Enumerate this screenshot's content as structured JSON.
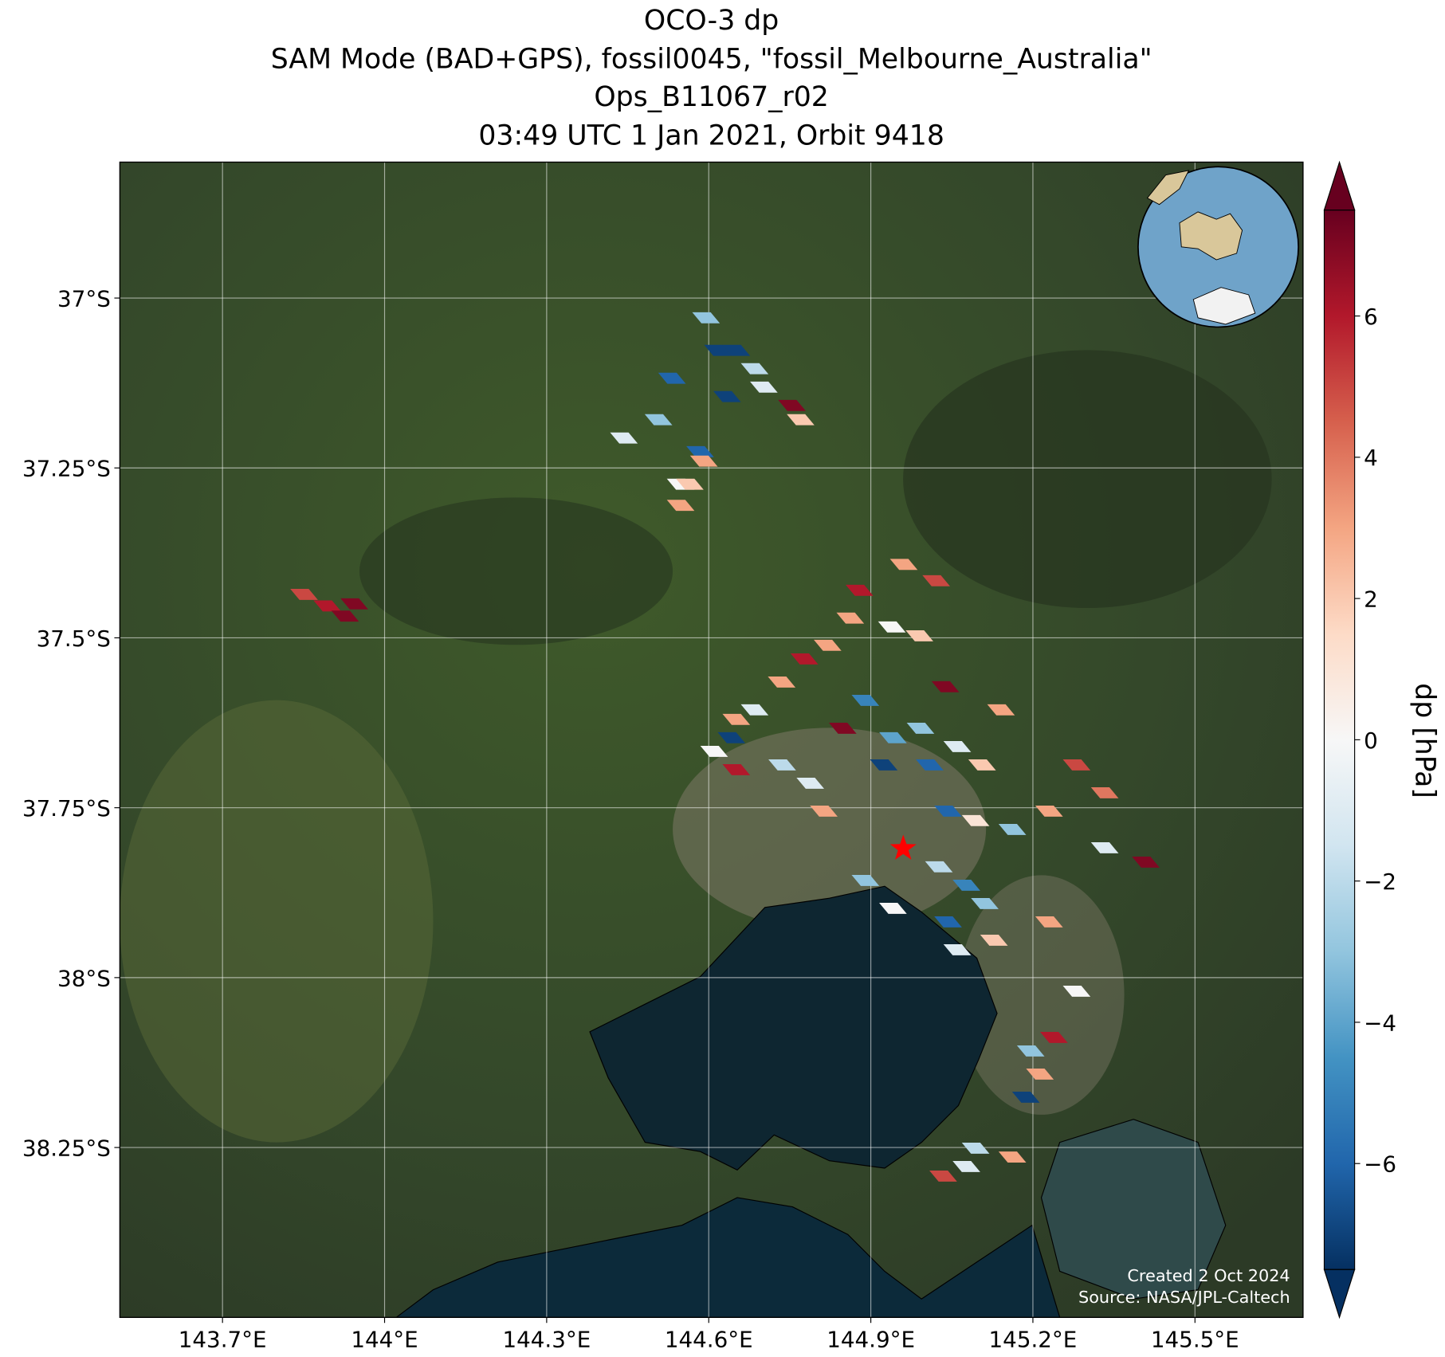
{
  "chart_data": {
    "type": "map",
    "title": [
      "OCO-3 dp",
      "SAM Mode (BAD+GPS), fossil0045, \"fossil_Melbourne_Australia\"",
      "Ops_B11067_r02",
      "03:49 UTC 1 Jan 2021, Orbit 9418"
    ],
    "xlim": [
      143.51,
      145.7
    ],
    "ylim": [
      -38.5,
      -36.8
    ],
    "xticks": [
      {
        "value": 143.7,
        "label": "143.7°E"
      },
      {
        "value": 144.0,
        "label": "144°E"
      },
      {
        "value": 144.3,
        "label": "144.3°E"
      },
      {
        "value": 144.6,
        "label": "144.6°E"
      },
      {
        "value": 144.9,
        "label": "144.9°E"
      },
      {
        "value": 145.2,
        "label": "145.2°E"
      },
      {
        "value": 145.5,
        "label": "145.5°E"
      }
    ],
    "yticks": [
      {
        "value": -37,
        "label": "37°S"
      },
      {
        "value": -37.25,
        "label": "37.25°S"
      },
      {
        "value": -37.5,
        "label": "37.5°S"
      },
      {
        "value": -37.75,
        "label": "37.75°S"
      },
      {
        "value": -38,
        "label": "38°S"
      },
      {
        "value": -38.25,
        "label": "38.25°S"
      }
    ],
    "grid": true,
    "colorbar_label": "dp [hPa]",
    "clim": [
      -7.5,
      7.5
    ],
    "cticks": [
      {
        "value": -6,
        "label": "−6"
      },
      {
        "value": -4,
        "label": "−4"
      },
      {
        "value": -2,
        "label": "−2"
      },
      0,
      2,
      4,
      6
    ],
    "target": {
      "lon": 144.96,
      "lat": -37.81,
      "color": "#ff0000"
    },
    "soundings": {
      "lon": [
        144.595,
        144.617,
        144.651,
        144.685,
        144.754,
        144.77,
        144.634,
        144.702,
        144.532,
        144.507,
        144.584,
        144.591,
        144.548,
        144.565,
        144.548,
        144.443,
        143.851,
        143.894,
        143.927,
        143.944,
        144.961,
        145.021,
        144.879,
        144.862,
        144.939,
        144.99,
        144.82,
        144.777,
        144.735,
        145.038,
        144.89,
        144.848,
        144.941,
        144.992,
        144.924,
        145.009,
        145.06,
        145.141,
        145.106,
        144.651,
        144.685,
        144.642,
        144.61,
        144.651,
        144.736,
        144.788,
        144.813,
        145.043,
        145.094,
        145.162,
        145.23,
        145.281,
        145.333,
        145.333,
        145.409,
        145.026,
        145.077,
        145.111,
        145.043,
        145.128,
        145.06,
        144.89,
        144.941,
        145.23,
        145.281,
        145.239,
        145.196,
        145.213,
        145.187,
        145.094,
        145.162,
        145.077,
        145.034
      ],
      "lat": [
        -37.029,
        -37.077,
        -37.077,
        -37.104,
        -37.158,
        -37.179,
        -37.145,
        -37.131,
        -37.118,
        -37.179,
        -37.226,
        -37.24,
        -37.274,
        -37.274,
        -37.305,
        -37.206,
        -37.436,
        -37.453,
        -37.468,
        -37.45,
        -37.392,
        -37.416,
        -37.43,
        -37.471,
        -37.484,
        -37.497,
        -37.511,
        -37.531,
        -37.565,
        -37.572,
        -37.592,
        -37.633,
        -37.647,
        -37.633,
        -37.687,
        -37.687,
        -37.66,
        -37.606,
        -37.687,
        -37.62,
        -37.606,
        -37.647,
        -37.667,
        -37.694,
        -37.687,
        -37.714,
        -37.755,
        -37.755,
        -37.769,
        -37.782,
        -37.755,
        -37.687,
        -37.728,
        -37.809,
        -37.83,
        -37.837,
        -37.864,
        -37.891,
        -37.918,
        -37.945,
        -37.959,
        -37.857,
        -37.898,
        -37.918,
        -38.02,
        -38.088,
        -38.108,
        -38.142,
        -38.176,
        -38.251,
        -38.264,
        -38.278,
        -38.292
      ],
      "dp": [
        -3,
        -7,
        -7,
        -2,
        7,
        2,
        -7,
        -1,
        -6,
        -3,
        -6,
        3,
        0,
        2,
        3,
        -1,
        5,
        6,
        7,
        7,
        3,
        5,
        6,
        3,
        0,
        2,
        3,
        6,
        3,
        7,
        -5,
        7,
        -4,
        -3,
        -7,
        -6,
        -1,
        3,
        2,
        3,
        -1,
        -7,
        0,
        6,
        -2,
        -1,
        3,
        -6,
        1,
        -3,
        3,
        5,
        4,
        -1,
        7,
        -2,
        -5,
        -3,
        -6,
        2,
        -1,
        -3,
        0,
        3,
        0,
        6,
        -3,
        3,
        -7,
        -2,
        3,
        -1,
        5
      ]
    },
    "credit": [
      "Created 2 Oct 2024",
      "Source: NASA/JPL-Caltech"
    ]
  }
}
